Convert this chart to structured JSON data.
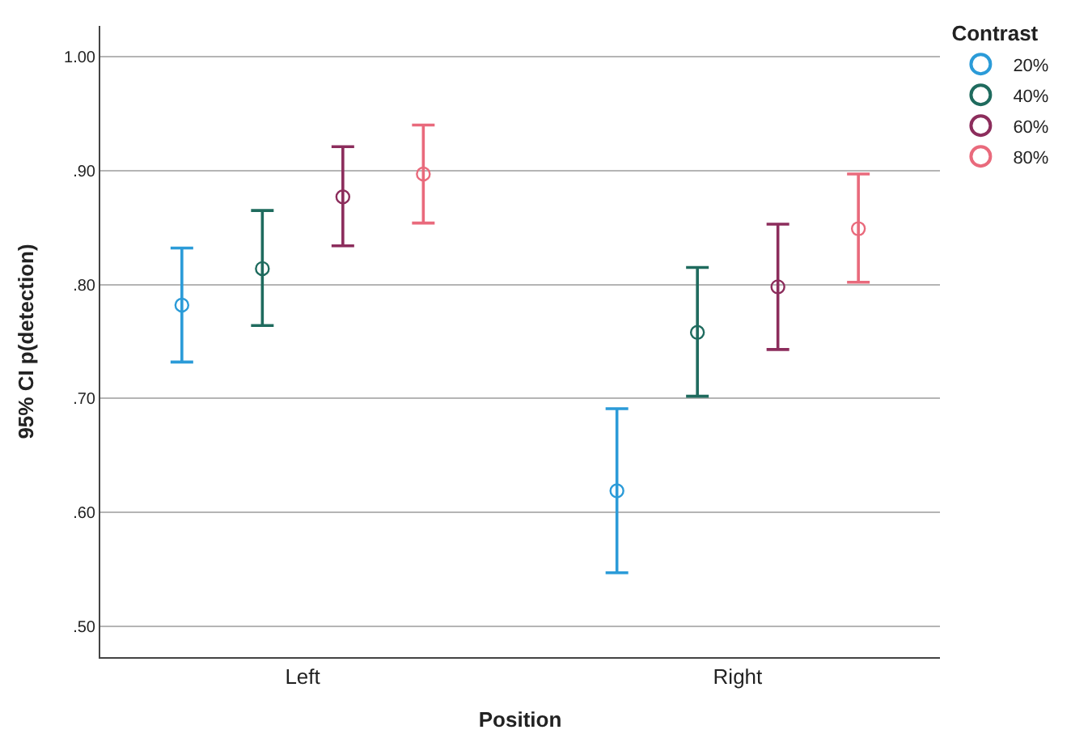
{
  "chart_data": {
    "type": "scatter",
    "xlabel": "Position",
    "ylabel": "95% CI p(detection)",
    "legend_title": "Contrast",
    "legend": "top right",
    "grid": "y",
    "marker": "circle",
    "categories": [
      "Left",
      "Right"
    ],
    "ylim": [
      0.473,
      1.027
    ],
    "yticks": [
      {
        "value": 0.5,
        "label": ".50"
      },
      {
        "value": 0.6,
        "label": ".60"
      },
      {
        "value": 0.7,
        "label": ".70"
      },
      {
        "value": 0.8,
        "label": ".80"
      },
      {
        "value": 0.9,
        "label": ".90"
      },
      {
        "value": 1.0,
        "label": "1.00"
      }
    ],
    "series": [
      {
        "name": "20%",
        "color": "#2b9bd8",
        "values": [
          0.782,
          0.619
        ],
        "errors": [
          [
            0.732,
            0.832
          ],
          [
            0.547,
            0.691
          ]
        ]
      },
      {
        "name": "40%",
        "color": "#1f6b5e",
        "values": [
          0.814,
          0.758
        ],
        "errors": [
          [
            0.764,
            0.865
          ],
          [
            0.702,
            0.815
          ]
        ]
      },
      {
        "name": "60%",
        "color": "#8c2d5c",
        "values": [
          0.877,
          0.798
        ],
        "errors": [
          [
            0.834,
            0.921
          ],
          [
            0.743,
            0.853
          ]
        ]
      },
      {
        "name": "80%",
        "color": "#e96a7c",
        "values": [
          0.897,
          0.849
        ],
        "errors": [
          [
            0.854,
            0.94
          ],
          [
            0.802,
            0.897
          ]
        ]
      }
    ]
  }
}
